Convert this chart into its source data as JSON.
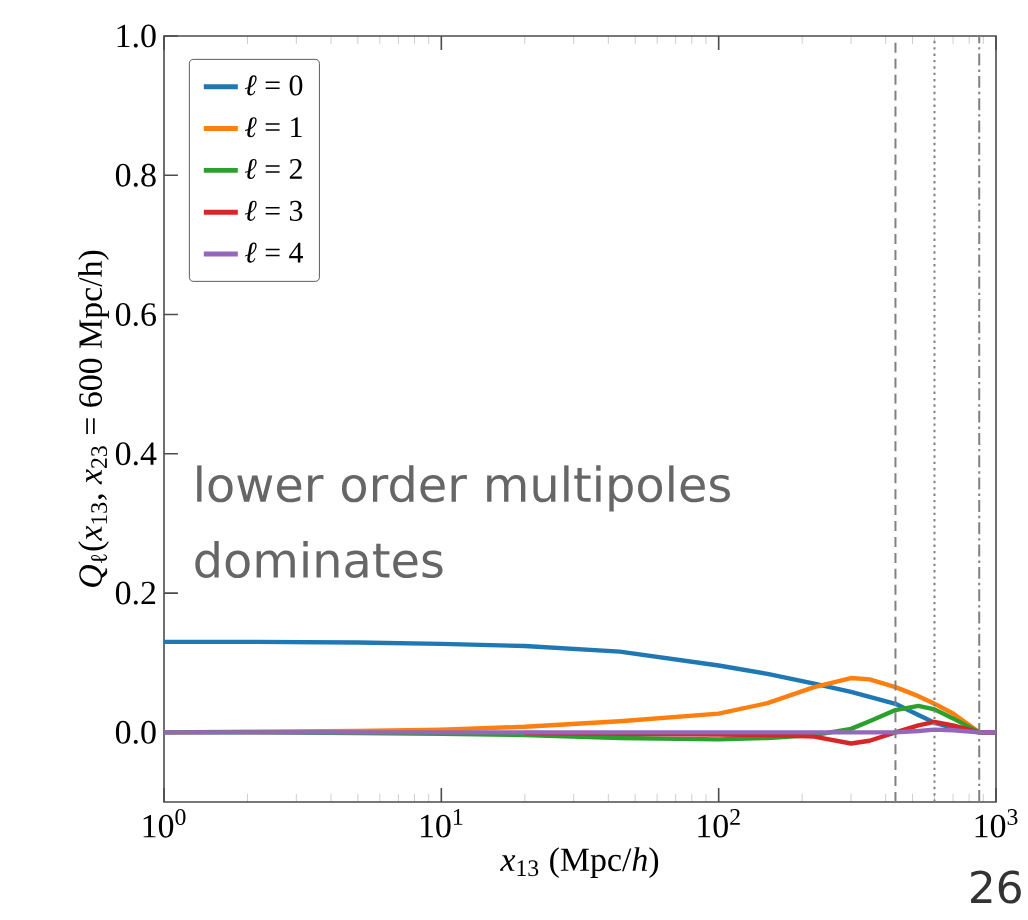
{
  "chart_data": {
    "type": "line",
    "xlabel": "*x*$_{13}$ (Mpc/*h*)",
    "ylabel": "*Q*$_{ℓ}$(*x*$_{13}$, *x*$_{23}$ = 600 Mpc/h)",
    "x": [
      1,
      2,
      5,
      10,
      20,
      44,
      100,
      150,
      221,
      300,
      350,
      434,
      525,
      600,
      700,
      870,
      1000
    ],
    "series": [
      {
        "name": "*ℓ* = 0",
        "color": "#1f77b4",
        "values": [
          0.13,
          0.13,
          0.129,
          0.127,
          0.124,
          0.116,
          0.096,
          0.084,
          0.07,
          0.058,
          0.051,
          0.041,
          0.025,
          0.014,
          0.006,
          0,
          0
        ]
      },
      {
        "name": "*ℓ* = 1",
        "color": "#ff7f0e",
        "values": [
          0,
          0.001,
          0.002,
          0.004,
          0.008,
          0.016,
          0.027,
          0.042,
          0.065,
          0.078,
          0.076,
          0.065,
          0.052,
          0.041,
          0.027,
          0,
          0
        ]
      },
      {
        "name": "*ℓ* = 2",
        "color": "#2ca02c",
        "values": [
          0,
          0,
          -0.001,
          -0.002,
          -0.004,
          -0.008,
          -0.01,
          -0.008,
          -0.004,
          0.005,
          0.016,
          0.032,
          0.038,
          0.033,
          0.02,
          0,
          0
        ]
      },
      {
        "name": "*ℓ* = 3",
        "color": "#d62728",
        "values": [
          null,
          null,
          null,
          null,
          -0.001,
          -0.002,
          -0.003,
          -0.004,
          -0.006,
          -0.016,
          -0.012,
          0,
          0.01,
          0.015,
          0.01,
          0,
          0
        ]
      },
      {
        "name": "*ℓ* = 4",
        "color": "#9467bd",
        "values": [
          0,
          0,
          0,
          0,
          0,
          0,
          0,
          0,
          0,
          0,
          0,
          0,
          0.002,
          0.004,
          0.003,
          0,
          0
        ]
      }
    ],
    "xlim": [
      1,
      1000
    ],
    "ylim": [
      -0.1,
      1.0
    ],
    "log": "x",
    "xticks": [
      {
        "value": 1,
        "label": "10$^{0}$"
      },
      {
        "value": 10,
        "label": "10$^{1}$"
      },
      {
        "value": 100,
        "label": "10$^{2}$"
      },
      {
        "value": 1000,
        "label": "10$^{3}$"
      }
    ],
    "yticks": [
      {
        "value": 0,
        "label": "0.0"
      },
      {
        "value": 0.2,
        "label": "0.2"
      },
      {
        "value": 0.4,
        "label": "0.4"
      },
      {
        "value": 0.6,
        "label": "0.6"
      },
      {
        "value": 0.8,
        "label": "0.8"
      },
      {
        "value": 1.0,
        "label": "1.0"
      }
    ],
    "ref_lines": [
      {
        "axis": "x",
        "value": 434,
        "color": "#808080",
        "line_style": "dashed"
      },
      {
        "axis": "x",
        "value": 600,
        "color": "#808080",
        "line_style": "dotted"
      },
      {
        "axis": "x",
        "value": 870,
        "color": "#808080",
        "line_style": "dashdot"
      }
    ],
    "legend": "top left",
    "annotations": [
      "lower order multipoles dominates",
      "26"
    ]
  }
}
